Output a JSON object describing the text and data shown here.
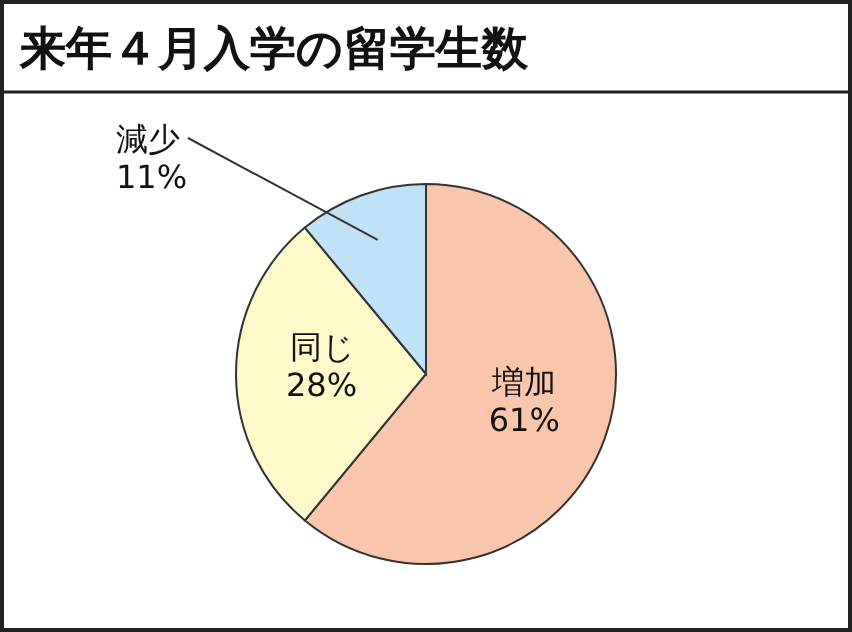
{
  "chart_data": {
    "type": "pie",
    "title": "来年４月入学の留学生数",
    "categories": [
      "増加",
      "同じ",
      "減少"
    ],
    "values": [
      61,
      28,
      11
    ],
    "value_labels": [
      "61%",
      "28%",
      "11%"
    ],
    "colors": [
      "#f9c6ab",
      "#fdf9c9",
      "#bfe2f6"
    ]
  }
}
